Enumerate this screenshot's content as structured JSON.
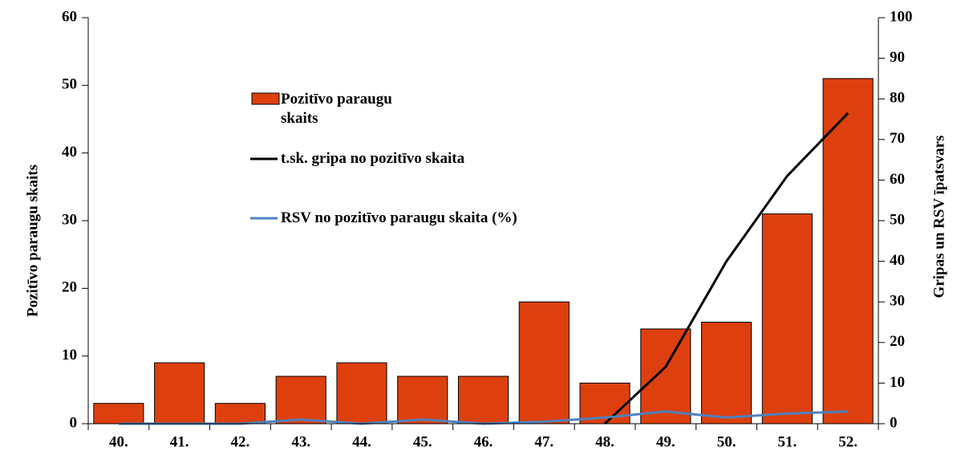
{
  "chart_data": {
    "type": "bar",
    "categories": [
      "40.",
      "41.",
      "42.",
      "43.",
      "44.",
      "45.",
      "46.",
      "47.",
      "48.",
      "49.",
      "50.",
      "51.",
      "52."
    ],
    "series": [
      {
        "name": "Pozitīvo paraugu skaits",
        "type": "bar",
        "color": "#dd400e",
        "values": [
          3,
          9,
          3,
          7,
          9,
          7,
          7,
          18,
          6,
          14,
          15,
          31,
          51
        ]
      },
      {
        "name": "t.sk. gripa no pozitīvo skaita",
        "type": "line",
        "axis": "y2",
        "color": "#000000",
        "values": [
          null,
          null,
          null,
          null,
          null,
          null,
          null,
          null,
          0,
          14,
          40,
          61,
          76.5
        ]
      },
      {
        "name": "RSV no pozitīvo paraugu skaita (%)",
        "type": "line",
        "axis": "y2",
        "color": "#4f81bd",
        "values": [
          0,
          0,
          0,
          1,
          0,
          1,
          0,
          0.5,
          1.5,
          3,
          1.5,
          2.5,
          3
        ]
      }
    ],
    "ylabel": "Pozitīvo  paraugu skaits",
    "y2label": "Gripas un RSV īpatsvars",
    "ylim": [
      0,
      60
    ],
    "yticks": [
      0,
      10,
      20,
      30,
      40,
      50,
      60
    ],
    "y2lim": [
      0,
      100
    ],
    "y2ticks": [
      0,
      10,
      20,
      30,
      40,
      50,
      60,
      70,
      80,
      90,
      100
    ]
  }
}
